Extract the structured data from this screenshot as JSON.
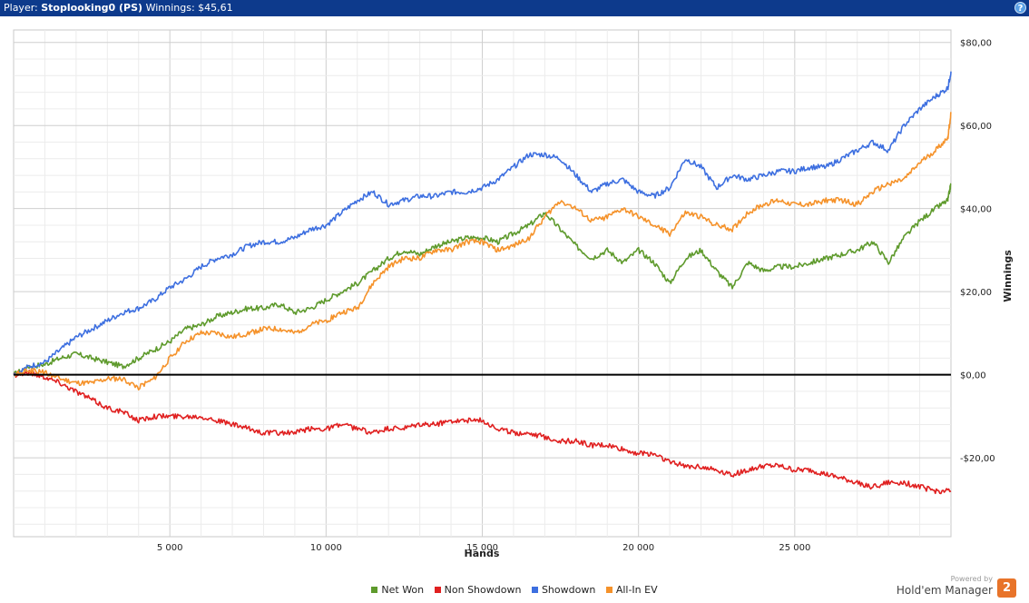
{
  "header": {
    "player_label": "Player:",
    "player_name": "Stoplooking0 (PS)",
    "winnings_label": "Winnings:",
    "winnings_value": "$45,61",
    "help_glyph": "?"
  },
  "branding": {
    "powered_by": "Powered by",
    "product": "Hold'em Manager",
    "logo_text": "2"
  },
  "chart_data": {
    "type": "line",
    "xlabel": "Hands",
    "ylabel": "Winnings",
    "xlim": [
      0,
      30000
    ],
    "ylim": [
      -39,
      83
    ],
    "x_ticks": [
      5000,
      10000,
      15000,
      20000,
      25000
    ],
    "x_tick_labels": [
      "5 000",
      "10 000",
      "15 000",
      "20 000",
      "25 000"
    ],
    "y_ticks": [
      -20,
      0,
      20,
      40,
      60,
      80
    ],
    "y_tick_labels": [
      "-$20,00",
      "$0,00",
      "$20,00",
      "$40,00",
      "$60,00",
      "$80,00"
    ],
    "grid": true,
    "legend_position": "bottom",
    "series": [
      {
        "name": "Net Won",
        "color": "#5e9a2c",
        "x": [
          0,
          500,
          1000,
          1500,
          2000,
          2500,
          3000,
          3500,
          4000,
          4500,
          5000,
          5500,
          6000,
          6500,
          7000,
          7500,
          8000,
          8500,
          9000,
          9500,
          10000,
          10500,
          11000,
          11500,
          12000,
          12500,
          13000,
          13500,
          14000,
          14500,
          15000,
          15500,
          16000,
          16500,
          17000,
          17500,
          18000,
          18500,
          19000,
          19500,
          20000,
          20500,
          21000,
          21500,
          22000,
          22500,
          23000,
          23500,
          24000,
          24500,
          25000,
          25500,
          26000,
          26500,
          27000,
          27500,
          28000,
          28500,
          29000,
          29500,
          29900,
          30000
        ],
        "values": [
          0,
          2,
          2.5,
          4,
          5,
          4,
          3,
          2,
          4,
          6,
          8,
          11,
          12,
          14,
          15,
          16,
          16,
          17,
          15,
          16,
          18,
          20,
          22,
          25,
          28,
          30,
          29,
          31,
          32,
          33,
          33,
          32,
          34,
          36,
          39,
          35,
          31,
          28,
          30,
          27,
          30,
          27,
          22,
          28,
          30,
          25,
          21,
          27,
          25,
          26,
          26,
          27,
          28,
          29,
          30,
          32,
          27,
          33,
          37,
          40,
          42,
          46
        ]
      },
      {
        "name": "Non Showdown",
        "color": "#e02020",
        "x": [
          0,
          500,
          1000,
          1500,
          2000,
          2500,
          3000,
          3500,
          4000,
          4500,
          5000,
          5500,
          6000,
          6500,
          7000,
          7500,
          8000,
          8500,
          9000,
          9500,
          10000,
          10500,
          11000,
          11500,
          12000,
          12500,
          13000,
          13500,
          14000,
          14500,
          15000,
          15500,
          16000,
          16500,
          17000,
          17500,
          18000,
          18500,
          19000,
          19500,
          20000,
          20500,
          21000,
          21500,
          22000,
          22500,
          23000,
          23500,
          24000,
          24500,
          25000,
          25500,
          26000,
          26500,
          27000,
          27500,
          28000,
          28500,
          29000,
          29500,
          30000
        ],
        "values": [
          0,
          0.5,
          -0.5,
          -2,
          -4,
          -6,
          -8,
          -9,
          -11,
          -10,
          -10,
          -10,
          -10,
          -11,
          -12,
          -13,
          -14,
          -14,
          -14,
          -13,
          -13,
          -12,
          -13,
          -14,
          -13,
          -13,
          -12,
          -12,
          -11,
          -11,
          -11,
          -13,
          -14,
          -14,
          -15,
          -16,
          -16,
          -17,
          -17,
          -18,
          -19,
          -19,
          -21,
          -22,
          -22,
          -23,
          -24,
          -23,
          -22,
          -22,
          -23,
          -23,
          -24,
          -25,
          -26,
          -27,
          -26,
          -26,
          -27,
          -28,
          -28
        ]
      },
      {
        "name": "Showdown",
        "color": "#3d6fe0",
        "x": [
          0,
          500,
          1000,
          1500,
          2000,
          2500,
          3000,
          3500,
          4000,
          4500,
          5000,
          5500,
          6000,
          6500,
          7000,
          7500,
          8000,
          8500,
          9000,
          9500,
          10000,
          10500,
          11000,
          11500,
          12000,
          12500,
          13000,
          13500,
          14000,
          14500,
          15000,
          15500,
          16000,
          16500,
          17000,
          17500,
          18000,
          18500,
          19000,
          19500,
          20000,
          20500,
          21000,
          21500,
          22000,
          22500,
          23000,
          23500,
          24000,
          24500,
          25000,
          25500,
          26000,
          26500,
          27000,
          27500,
          28000,
          28500,
          29000,
          29500,
          29900,
          30000
        ],
        "values": [
          0,
          2,
          3,
          6,
          9,
          11,
          13,
          15,
          16,
          18,
          21,
          23,
          26,
          28,
          29,
          31,
          32,
          32,
          33,
          35,
          36,
          39,
          42,
          44,
          41,
          42,
          43,
          43,
          44,
          44,
          45,
          47,
          50,
          53,
          53,
          52,
          48,
          44,
          46,
          47,
          44,
          43,
          45,
          52,
          50,
          45,
          48,
          47,
          48,
          49,
          49,
          50,
          50,
          52,
          54,
          56,
          54,
          60,
          64,
          67,
          69,
          73
        ]
      },
      {
        "name": "All-In EV",
        "color": "#f5922a",
        "x": [
          0,
          500,
          1000,
          1500,
          2000,
          2500,
          3000,
          3500,
          4000,
          4500,
          5000,
          5500,
          6000,
          6500,
          7000,
          7500,
          8000,
          8500,
          9000,
          9500,
          10000,
          10500,
          11000,
          11500,
          12000,
          12500,
          13000,
          13500,
          14000,
          14500,
          15000,
          15500,
          16000,
          16500,
          17000,
          17500,
          18000,
          18500,
          19000,
          19500,
          20000,
          20500,
          21000,
          21500,
          22000,
          22500,
          23000,
          23500,
          24000,
          24500,
          25000,
          25500,
          26000,
          26500,
          27000,
          27500,
          28000,
          28500,
          29000,
          29500,
          29900,
          30000
        ],
        "values": [
          0,
          1,
          0.5,
          -1,
          -2,
          -2,
          -1,
          -1,
          -3,
          -1,
          4,
          8,
          10,
          10,
          9,
          10,
          11,
          11,
          10,
          12,
          13,
          15,
          16,
          22,
          26,
          28,
          28,
          30,
          30,
          32,
          32,
          30,
          31,
          33,
          38,
          42,
          40,
          37,
          38,
          40,
          38,
          36,
          34,
          39,
          38,
          36,
          35,
          39,
          41,
          42,
          41,
          41,
          42,
          42,
          41,
          44,
          46,
          47,
          51,
          54,
          57,
          63
        ]
      }
    ]
  }
}
